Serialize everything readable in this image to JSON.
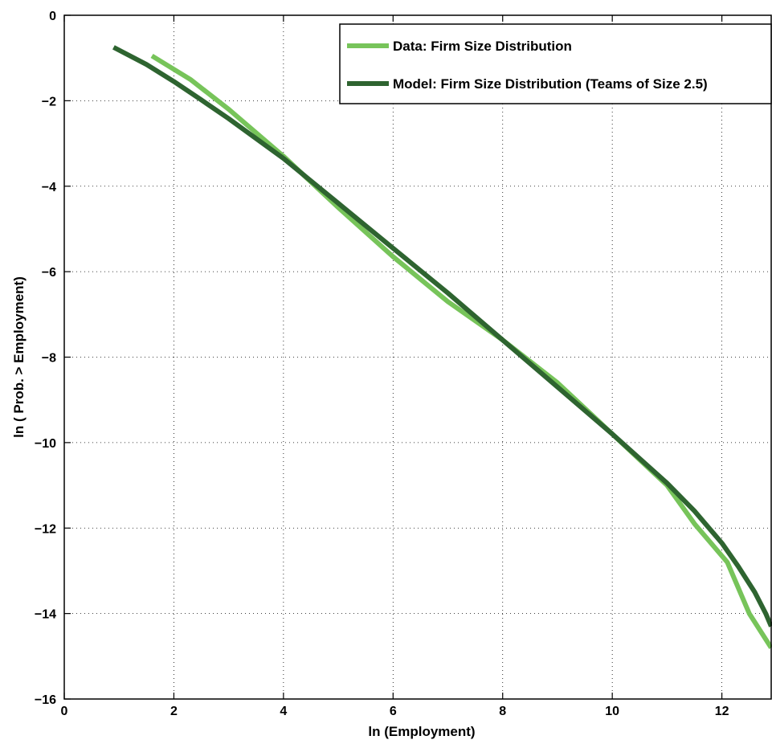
{
  "chart_data": {
    "type": "line",
    "title": "",
    "xlabel": "ln (Employment)",
    "ylabel": "ln ( Prob. > Employment)",
    "xlim": [
      0,
      12.9
    ],
    "ylim": [
      -16,
      0
    ],
    "xticks": [
      0,
      2,
      4,
      6,
      8,
      10,
      12
    ],
    "yticks": [
      0,
      -2,
      -4,
      -6,
      -8,
      -10,
      -12,
      -14,
      -16
    ],
    "xtick_labels": [
      "0",
      "2",
      "4",
      "6",
      "8",
      "10",
      "12"
    ],
    "ytick_labels": [
      "0",
      "−2",
      "−4",
      "−6",
      "−8",
      "−10",
      "−12",
      "−14",
      "−16"
    ],
    "grid": true,
    "legend_position": "top-right",
    "series": [
      {
        "name": "Data: Firm Size Distribution",
        "color": "#77c45a",
        "x": [
          1.6,
          2.3,
          3.0,
          4.0,
          5.0,
          6.0,
          7.0,
          8.0,
          9.0,
          10.0,
          10.5,
          11.0,
          11.5,
          12.1,
          12.5,
          12.9
        ],
        "y": [
          -0.95,
          -1.5,
          -2.2,
          -3.3,
          -4.5,
          -5.65,
          -6.7,
          -7.6,
          -8.6,
          -9.8,
          -10.4,
          -11.0,
          -11.9,
          -12.8,
          -14.0,
          -14.8
        ]
      },
      {
        "name": "Model: Firm Size Distribution (Teams of Size 2.5)",
        "color": "#2e6430",
        "x": [
          0.9,
          1.5,
          2.0,
          2.5,
          3.0,
          4.0,
          5.0,
          6.0,
          7.0,
          8.0,
          9.0,
          10.0,
          11.0,
          11.5,
          12.0,
          12.3,
          12.6,
          12.8,
          12.9
        ],
        "y": [
          -0.75,
          -1.15,
          -1.55,
          -1.98,
          -2.42,
          -3.35,
          -4.4,
          -5.45,
          -6.5,
          -7.6,
          -8.7,
          -9.8,
          -10.95,
          -11.6,
          -12.35,
          -12.9,
          -13.5,
          -14.0,
          -14.3
        ]
      }
    ]
  }
}
